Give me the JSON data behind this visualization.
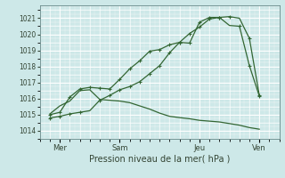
{
  "xlabel": "Pression niveau de la mer( hPa )",
  "bg_color": "#cde8e8",
  "grid_color_major": "#aacccc",
  "grid_color_minor": "#bbdddd",
  "line_color": "#336633",
  "ylim": [
    1013.5,
    1021.8
  ],
  "yticks": [
    1014,
    1015,
    1016,
    1017,
    1018,
    1019,
    1020,
    1021
  ],
  "xtick_labels": [
    "Mer",
    "Sam",
    "Jeu",
    "Ven"
  ],
  "xtick_positions": [
    1,
    4,
    8,
    11
  ],
  "xlim": [
    0,
    12
  ],
  "line1_x": [
    0.5,
    1.0,
    1.5,
    2.0,
    2.5,
    3.0,
    3.5,
    4.0,
    4.5,
    5.0,
    5.5,
    6.0,
    6.5,
    7.0,
    7.5,
    8.0,
    8.5,
    9.0,
    9.5,
    10.0,
    10.5,
    11.0
  ],
  "line1_y": [
    1014.8,
    1014.9,
    1015.05,
    1015.15,
    1015.25,
    1015.9,
    1016.2,
    1016.55,
    1016.75,
    1017.05,
    1017.55,
    1018.05,
    1018.85,
    1019.5,
    1020.05,
    1020.45,
    1020.95,
    1021.05,
    1021.1,
    1021.0,
    1019.75,
    1016.2
  ],
  "line2_x": [
    0.5,
    1.0,
    1.5,
    2.0,
    2.5,
    3.0,
    3.5,
    4.0,
    4.5,
    5.0,
    5.5,
    6.0,
    6.5,
    7.0,
    7.5,
    8.0,
    8.5,
    9.0,
    9.5,
    10.0,
    10.5,
    11.0
  ],
  "line2_y": [
    1015.0,
    1015.15,
    1016.1,
    1016.6,
    1016.7,
    1016.65,
    1016.6,
    1017.2,
    1017.85,
    1018.35,
    1018.95,
    1019.05,
    1019.35,
    1019.5,
    1019.45,
    1020.75,
    1021.05,
    1021.05,
    1020.55,
    1020.5,
    1018.05,
    1016.15
  ],
  "line3_x": [
    0.5,
    1.0,
    1.5,
    2.0,
    2.5,
    3.0,
    3.5,
    4.0,
    4.5,
    5.0,
    5.5,
    6.0,
    6.5,
    7.0,
    7.5,
    8.0,
    8.5,
    9.0,
    9.5,
    10.0,
    10.5,
    11.0
  ],
  "line3_y": [
    1015.05,
    1015.55,
    1015.85,
    1016.5,
    1016.55,
    1015.95,
    1015.9,
    1015.85,
    1015.75,
    1015.55,
    1015.35,
    1015.1,
    1014.9,
    1014.82,
    1014.75,
    1014.65,
    1014.6,
    1014.55,
    1014.45,
    1014.35,
    1014.2,
    1014.1
  ],
  "markers1_x": [
    0.5,
    1.0,
    1.5,
    2.0,
    3.0,
    3.5,
    4.0,
    4.5,
    5.0,
    5.5,
    6.0,
    6.5,
    7.0,
    7.5,
    8.0,
    8.5,
    9.0,
    9.5,
    10.5,
    11.0
  ],
  "markers1_y": [
    1014.8,
    1014.9,
    1015.05,
    1015.15,
    1015.9,
    1016.2,
    1016.55,
    1016.75,
    1017.05,
    1017.55,
    1018.05,
    1018.85,
    1019.5,
    1020.05,
    1020.45,
    1020.95,
    1021.05,
    1021.1,
    1019.75,
    1016.2
  ],
  "markers2_x": [
    0.5,
    1.0,
    1.5,
    2.0,
    2.5,
    3.0,
    3.5,
    4.0,
    4.5,
    5.0,
    5.5,
    6.0,
    6.5,
    7.0,
    7.5,
    8.0,
    8.5,
    9.0,
    10.0,
    10.5,
    11.0
  ],
  "markers2_y": [
    1015.0,
    1015.15,
    1016.1,
    1016.6,
    1016.7,
    1016.65,
    1016.6,
    1017.2,
    1017.85,
    1018.35,
    1018.95,
    1019.05,
    1019.35,
    1019.5,
    1019.45,
    1020.75,
    1021.05,
    1021.05,
    1020.5,
    1018.05,
    1016.15
  ],
  "vline_x": [
    1,
    4,
    8,
    11
  ],
  "linewidth": 0.9,
  "marker_size": 3.5
}
